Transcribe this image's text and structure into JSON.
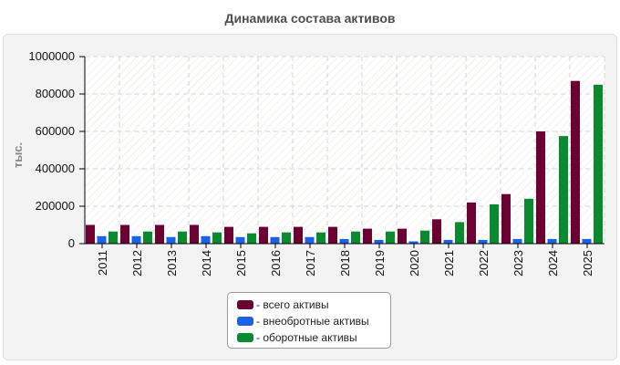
{
  "chart_data": {
    "type": "bar",
    "title": "Динамика состава активов",
    "ylabel": "тыс.",
    "xlabel": "",
    "categories": [
      "2011",
      "2012",
      "2013",
      "2014",
      "2015",
      "2016",
      "2017",
      "2018",
      "2019",
      "2020",
      "2021",
      "2022",
      "2023",
      "2024",
      "2025"
    ],
    "ylim": [
      0,
      1000000
    ],
    "yticks": [
      "0",
      "200000",
      "400000",
      "600000",
      "800000",
      "1000000"
    ],
    "grid": true,
    "legend_placement": "bottom",
    "series": [
      {
        "name": "- всего активы",
        "color": "#6b0033",
        "values": [
          100000,
          100000,
          100000,
          100000,
          90000,
          90000,
          90000,
          90000,
          80000,
          80000,
          130000,
          220000,
          265000,
          600000,
          870000
        ]
      },
      {
        "name": "- внеобротные активы",
        "color": "#1b63e6",
        "values": [
          40000,
          40000,
          35000,
          40000,
          35000,
          35000,
          35000,
          25000,
          20000,
          12000,
          20000,
          20000,
          25000,
          25000,
          25000
        ]
      },
      {
        "name": "- оборотные активы",
        "color": "#0a8a2e",
        "values": [
          65000,
          65000,
          65000,
          60000,
          55000,
          60000,
          60000,
          65000,
          65000,
          70000,
          115000,
          210000,
          240000,
          575000,
          850000
        ]
      }
    ]
  }
}
